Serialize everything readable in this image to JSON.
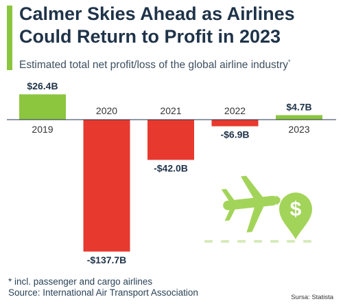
{
  "title": "Calmer Skies Ahead as Airlines Could Return to Profit in 2023",
  "subtitle": "Estimated total net profit/loss of the global airline industry",
  "subtitle_marker": "*",
  "footnote": "* incl. passenger and cargo airlines",
  "source": "Source: International Air Transport Association",
  "credit": "Sursa: Statista",
  "colors": {
    "positive": "#8cc63f",
    "negative": "#e8392f",
    "title": "#1f3349",
    "illustration": "#a3d45a",
    "runway": "#d7ebbb"
  },
  "icons": [
    "airplane-icon",
    "dollar-pin-icon",
    "runway-dashes"
  ],
  "chart_data": {
    "type": "bar",
    "title": "",
    "xlabel": "",
    "ylabel": "",
    "unit": "US$ billions",
    "categories": [
      "2019",
      "2020",
      "2021",
      "2022",
      "2023"
    ],
    "values": [
      26.4,
      -137.7,
      -42.0,
      -6.9,
      4.7
    ],
    "value_labels": [
      "$26.4B",
      "-$137.7B",
      "-$42.0B",
      "-$6.9B",
      "$4.7B"
    ],
    "ylim": [
      -137.7,
      26.4
    ],
    "grid": false,
    "legend": "none"
  }
}
